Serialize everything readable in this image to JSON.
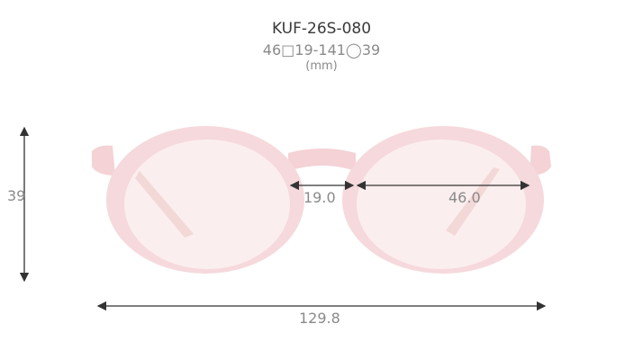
{
  "model": "KUF-26S-080",
  "spec": "46□19-141◯39",
  "unit": "(mm)",
  "dimensions": {
    "lens_height": "39",
    "bridge_width": "19.0",
    "lens_width": "46.0",
    "total_width": "129.8"
  },
  "colors": {
    "frame": "#f6d9dc",
    "lens": "#fbecec",
    "arrow": "#333333",
    "label": "#8a8a8a"
  }
}
